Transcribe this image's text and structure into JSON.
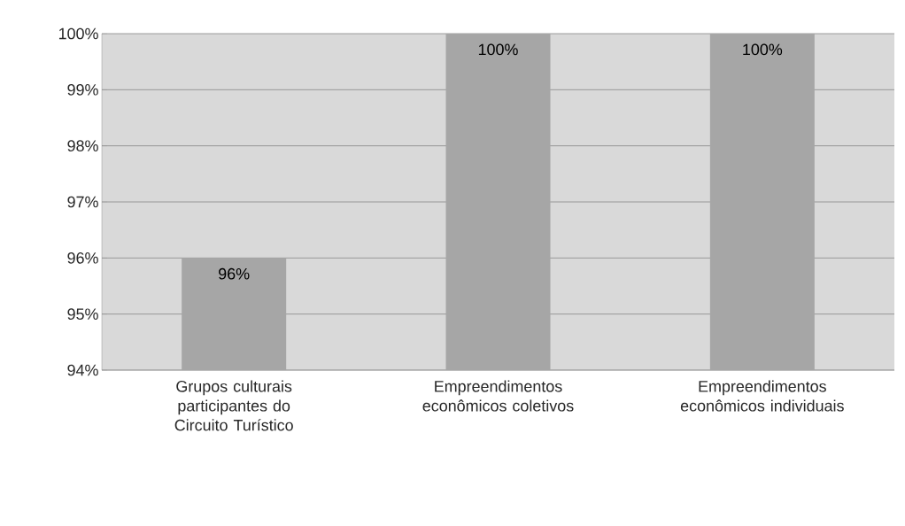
{
  "chart_data": {
    "type": "bar",
    "categories": [
      "Grupos culturais participantes do Circuito Turístico",
      "Empreendimentos econômicos coletivos",
      "Empreendimentos econômicos individuais"
    ],
    "values": [
      96,
      100,
      100
    ],
    "value_labels": [
      "96%",
      "100%",
      "100%"
    ],
    "color": "#a6a6a6",
    "ylim": [
      94,
      100
    ],
    "yticks": [
      {
        "value": 94,
        "label": "94%"
      },
      {
        "value": 95,
        "label": "95%"
      },
      {
        "value": 96,
        "label": "96%"
      },
      {
        "value": 97,
        "label": "97%"
      },
      {
        "value": 98,
        "label": "98%"
      },
      {
        "value": 99,
        "label": "99%"
      },
      {
        "value": 100,
        "label": "100%"
      }
    ],
    "grid": "y"
  }
}
